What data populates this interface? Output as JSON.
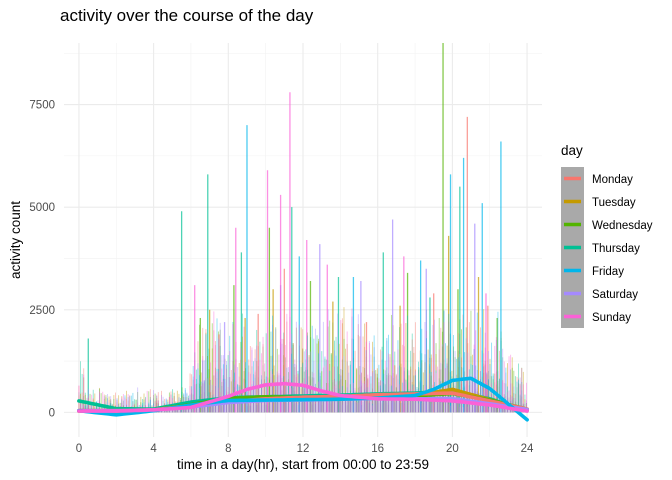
{
  "chart_data": {
    "type": "line",
    "title": "activity over the course of the day",
    "xlabel": "time in a day(hr), start from 00:00 to 23:59",
    "ylabel": "activity count",
    "xlim": [
      -0.8,
      24.8
    ],
    "ylim": [
      -600,
      9000
    ],
    "x_ticks": [
      0,
      4,
      8,
      12,
      16,
      20,
      24
    ],
    "y_ticks": [
      0,
      2500,
      5000,
      7500
    ],
    "grid": true,
    "legend": {
      "title": "day",
      "placement": "right"
    },
    "series": [
      {
        "name": "Monday",
        "color": "#F8766D",
        "smooth": {
          "x": [
            0,
            2,
            4,
            6,
            8,
            10,
            12,
            14,
            16,
            18,
            20,
            22,
            24
          ],
          "y": [
            40,
            40,
            60,
            170,
            260,
            330,
            370,
            390,
            430,
            450,
            470,
            280,
            80
          ]
        },
        "spikes": [
          [
            7.5,
            1900
          ],
          [
            9.6,
            2400
          ],
          [
            11.0,
            3500
          ],
          [
            15.4,
            2200
          ],
          [
            19.0,
            2900
          ],
          [
            20.8,
            7200
          ],
          [
            21.9,
            2600
          ]
        ]
      },
      {
        "name": "Tuesday",
        "color": "#C49A00",
        "smooth": {
          "x": [
            0,
            2,
            4,
            6,
            8,
            10,
            12,
            14,
            16,
            18,
            20,
            22,
            24
          ],
          "y": [
            30,
            30,
            50,
            160,
            300,
            340,
            350,
            360,
            370,
            410,
            560,
            310,
            60
          ]
        },
        "spikes": [
          [
            7.0,
            2500
          ],
          [
            8.9,
            2300
          ],
          [
            10.4,
            3000
          ],
          [
            13.6,
            2700
          ],
          [
            17.2,
            2600
          ],
          [
            19.8,
            4300
          ],
          [
            21.4,
            3300
          ]
        ]
      },
      {
        "name": "Wednesday",
        "color": "#53B400",
        "smooth": {
          "x": [
            0,
            2,
            4,
            6,
            8,
            10,
            12,
            14,
            16,
            18,
            20,
            22,
            24
          ],
          "y": [
            40,
            40,
            60,
            190,
            340,
            380,
            360,
            340,
            360,
            400,
            460,
            300,
            80
          ]
        },
        "spikes": [
          [
            6.5,
            2300
          ],
          [
            8.3,
            3100
          ],
          [
            10.2,
            4500
          ],
          [
            12.4,
            3200
          ],
          [
            17.6,
            3400
          ],
          [
            19.5,
            9000
          ],
          [
            20.3,
            3000
          ],
          [
            22.4,
            2300
          ]
        ]
      },
      {
        "name": "Thursday",
        "color": "#00C094",
        "smooth": {
          "x": [
            0,
            2,
            4,
            6,
            8,
            10,
            12,
            14,
            16,
            18,
            20,
            22,
            24
          ],
          "y": [
            280,
            90,
            80,
            250,
            360,
            380,
            400,
            420,
            450,
            470,
            520,
            330,
            40
          ]
        },
        "spikes": [
          [
            0.5,
            1800
          ],
          [
            5.5,
            4900
          ],
          [
            6.9,
            5800
          ],
          [
            8.7,
            3900
          ],
          [
            11.4,
            5000
          ],
          [
            13.9,
            3300
          ],
          [
            16.3,
            3900
          ],
          [
            18.8,
            2800
          ],
          [
            20.4,
            5500
          ]
        ]
      },
      {
        "name": "Friday",
        "color": "#00B6EB",
        "smooth": {
          "x": [
            0,
            2,
            4,
            6,
            8,
            10,
            12,
            14,
            16,
            18,
            19,
            20,
            21,
            22,
            23,
            24
          ],
          "y": [
            40,
            -60,
            40,
            180,
            290,
            300,
            310,
            320,
            350,
            410,
            560,
            780,
            830,
            580,
            200,
            -180
          ]
        },
        "spikes": [
          [
            9.0,
            7000
          ],
          [
            11.8,
            3800
          ],
          [
            14.7,
            3300
          ],
          [
            18.3,
            3700
          ],
          [
            19.9,
            5800
          ],
          [
            20.6,
            6200
          ],
          [
            21.6,
            5100
          ],
          [
            22.6,
            6600
          ]
        ]
      },
      {
        "name": "Saturday",
        "color": "#A58AFF",
        "smooth": {
          "x": [
            0,
            2,
            4,
            6,
            8,
            10,
            12,
            14,
            16,
            18,
            20,
            22,
            24
          ],
          "y": [
            40,
            40,
            60,
            130,
            240,
            290,
            300,
            320,
            340,
            330,
            330,
            210,
            70
          ]
        },
        "spikes": [
          [
            7.8,
            2200
          ],
          [
            10.8,
            3100
          ],
          [
            12.9,
            4100
          ],
          [
            15.1,
            3200
          ],
          [
            16.8,
            4700
          ],
          [
            18.6,
            3500
          ],
          [
            21.2,
            4600
          ]
        ]
      },
      {
        "name": "Sunday",
        "color": "#FB61D7",
        "smooth": {
          "x": [
            0,
            2,
            4,
            6,
            8,
            9,
            10,
            11,
            12,
            13,
            14,
            16,
            18,
            20,
            22,
            24
          ],
          "y": [
            30,
            30,
            60,
            120,
            390,
            560,
            670,
            700,
            660,
            520,
            410,
            330,
            320,
            280,
            180,
            30
          ]
        },
        "spikes": [
          [
            6.2,
            3100
          ],
          [
            8.4,
            4500
          ],
          [
            10.1,
            5900
          ],
          [
            10.8,
            5300
          ],
          [
            11.3,
            7800
          ],
          [
            12.2,
            4200
          ],
          [
            13.3,
            3600
          ],
          [
            17.4,
            3800
          ],
          [
            21.8,
            2900
          ]
        ]
      }
    ]
  }
}
